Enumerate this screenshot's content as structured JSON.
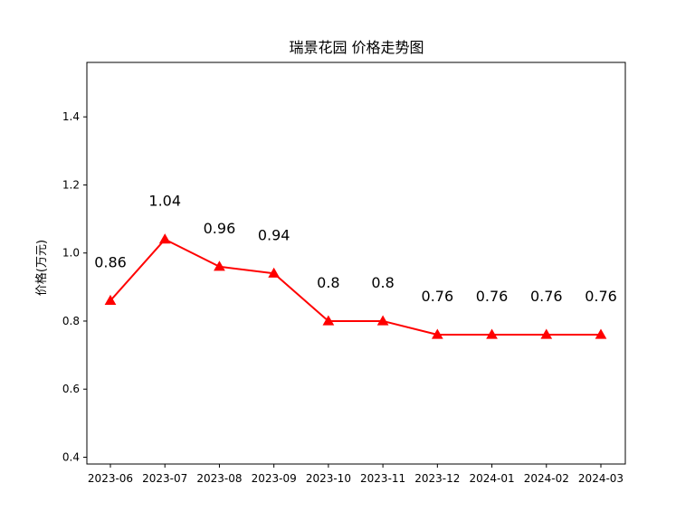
{
  "chart_data": {
    "type": "line",
    "title": "瑞景花园 价格走势图",
    "xlabel": "",
    "ylabel": "价格(万元)",
    "categories": [
      "2023-06",
      "2023-07",
      "2023-08",
      "2023-09",
      "2023-10",
      "2023-11",
      "2023-12",
      "2024-01",
      "2024-02",
      "2024-03"
    ],
    "series": [
      {
        "values": [
          0.86,
          1.04,
          0.96,
          0.94,
          0.8,
          0.8,
          0.76,
          0.76,
          0.76,
          0.76
        ],
        "labels": [
          "0.86",
          "1.04",
          "0.96",
          "0.94",
          "0.8",
          "0.8",
          "0.76",
          "0.76",
          "0.76",
          "0.76"
        ],
        "color": "#ff0000",
        "marker": "triangle"
      }
    ],
    "ylim": [
      0.38,
      1.56
    ],
    "yticks": [
      0.4,
      0.6,
      0.8,
      1.0,
      1.2,
      1.4
    ],
    "ytick_labels": [
      "0.4",
      "0.6",
      "0.8",
      "1.0",
      "1.2",
      "1.4"
    ],
    "grid": false,
    "legend": "none"
  }
}
